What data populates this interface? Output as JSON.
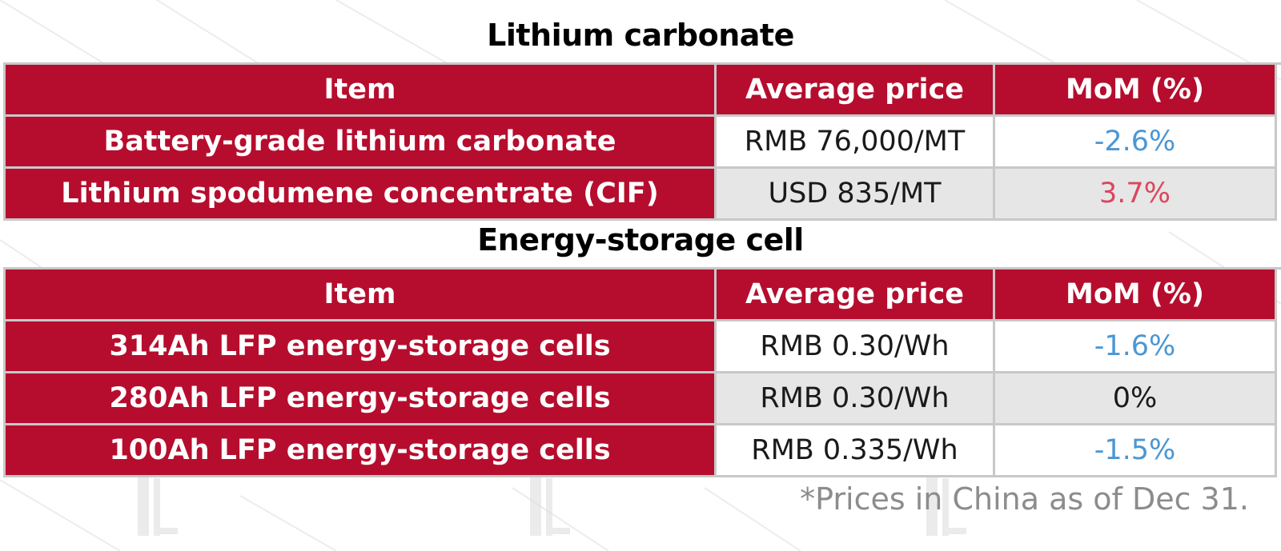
{
  "lithium_table": {
    "title": "Lithium carbonate",
    "headers": [
      "Item",
      "Average price",
      "MoM (%)"
    ],
    "rows": [
      {
        "item": "Battery-grade lithium carbonate",
        "price": "RMB 76,000/MT",
        "mom": "-2.6%",
        "trend": "down"
      },
      {
        "item": "Lithium spodumene concentrate (CIF)",
        "price": "USD 835/MT",
        "mom": "3.7%",
        "trend": "up"
      }
    ]
  },
  "storage_table": {
    "title": "Energy-storage cell",
    "headers": [
      "Item",
      "Average price",
      "MoM (%)"
    ],
    "rows": [
      {
        "item": "314Ah LFP energy-storage cells",
        "price": "RMB 0.30/Wh",
        "mom": "-1.6%",
        "trend": "down"
      },
      {
        "item": "280Ah LFP energy-storage cells",
        "price": "RMB 0.30/Wh",
        "mom": "0%",
        "trend": "flat"
      },
      {
        "item": "100Ah LFP energy-storage cells",
        "price": "RMB 0.335/Wh",
        "mom": "-1.5%",
        "trend": "down"
      }
    ]
  },
  "footnote": "*Prices in China as of Dec 31.",
  "colors": {
    "header_bg": "#b60d2e",
    "header_text": "#ffffff",
    "stripe_bg": "#e6e6e6",
    "negative": "#4a97d4",
    "positive": "#d9475e",
    "grid_line": "#c8c8c8"
  },
  "watermark_icon": "brand-logo-watermark"
}
